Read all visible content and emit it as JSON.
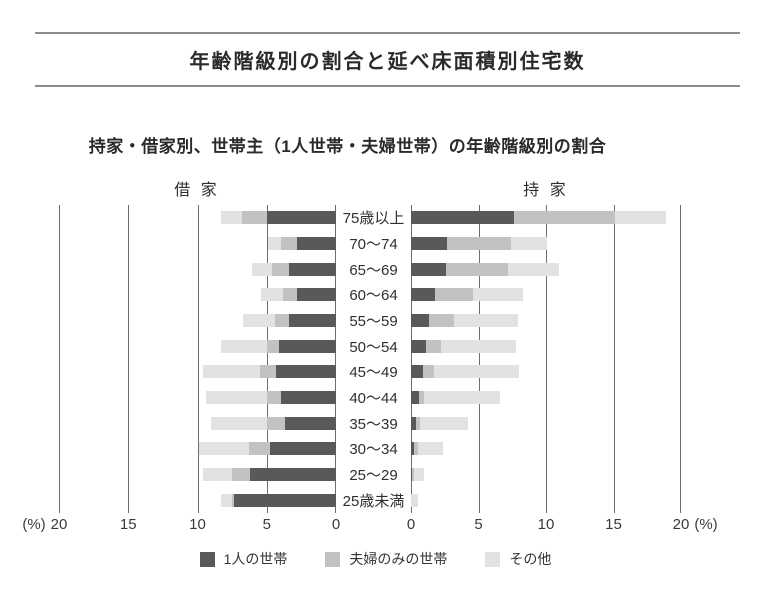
{
  "page": {
    "title": "年齢階級別の割合と延べ床面積別住宅数",
    "subtitle": "持家・借家別、世帯主（1人世帯・夫婦世帯）の年齢階級別の割合"
  },
  "chart_data": {
    "type": "bar",
    "variant": "diverging-stacked-horizontal",
    "title": "持家・借家別、世帯主（1人世帯・夫婦世帯）の年齢階級別の割合",
    "categories": [
      "75歳以上",
      "70〜74",
      "65〜69",
      "60〜64",
      "55〜59",
      "50〜54",
      "45〜49",
      "40〜44",
      "35〜39",
      "30〜34",
      "25〜29",
      "25歳未満"
    ],
    "legend": [
      "1人の世帯",
      "夫婦のみの世帯",
      "その他"
    ],
    "legend_position": "bottom",
    "axis": {
      "max": 20,
      "ticks_left": [
        "20",
        "15",
        "10",
        "5",
        "0"
      ],
      "ticks_right": [
        "0",
        "5",
        "10",
        "15",
        "20"
      ],
      "unit_label": "(%)",
      "grid": "vertical"
    },
    "left": {
      "label": "借 家",
      "series": [
        {
          "name": "1人の世帯",
          "values": [
            5.0,
            2.8,
            3.4,
            2.8,
            3.4,
            4.1,
            4.3,
            4.0,
            3.7,
            4.8,
            6.2,
            7.4
          ]
        },
        {
          "name": "夫婦のみの世帯",
          "values": [
            1.8,
            1.2,
            1.2,
            1.0,
            1.0,
            0.9,
            1.2,
            1.0,
            1.3,
            1.5,
            1.3,
            0.1
          ]
        },
        {
          "name": "その他",
          "values": [
            1.5,
            0.9,
            1.5,
            1.6,
            2.3,
            3.3,
            4.1,
            4.4,
            4.0,
            3.6,
            2.1,
            0.8
          ]
        }
      ]
    },
    "right": {
      "label": "持 家",
      "series": [
        {
          "name": "1人の世帯",
          "values": [
            7.6,
            2.7,
            2.6,
            1.8,
            1.3,
            1.1,
            0.9,
            0.6,
            0.4,
            0.2,
            0.1,
            0.0
          ]
        },
        {
          "name": "夫婦のみの世帯",
          "values": [
            7.5,
            4.7,
            4.6,
            2.8,
            1.9,
            1.1,
            0.8,
            0.4,
            0.3,
            0.3,
            0.1,
            0.0
          ]
        },
        {
          "name": "その他",
          "values": [
            3.8,
            2.7,
            3.8,
            3.7,
            4.7,
            5.6,
            6.3,
            5.6,
            3.5,
            1.9,
            0.8,
            0.5
          ]
        }
      ]
    },
    "colors": {
      "series": [
        "#595959",
        "#c2c2c2",
        "#e2e2e2"
      ],
      "gridline": "#6e6e6e",
      "rule": "#8c8c8c"
    }
  }
}
